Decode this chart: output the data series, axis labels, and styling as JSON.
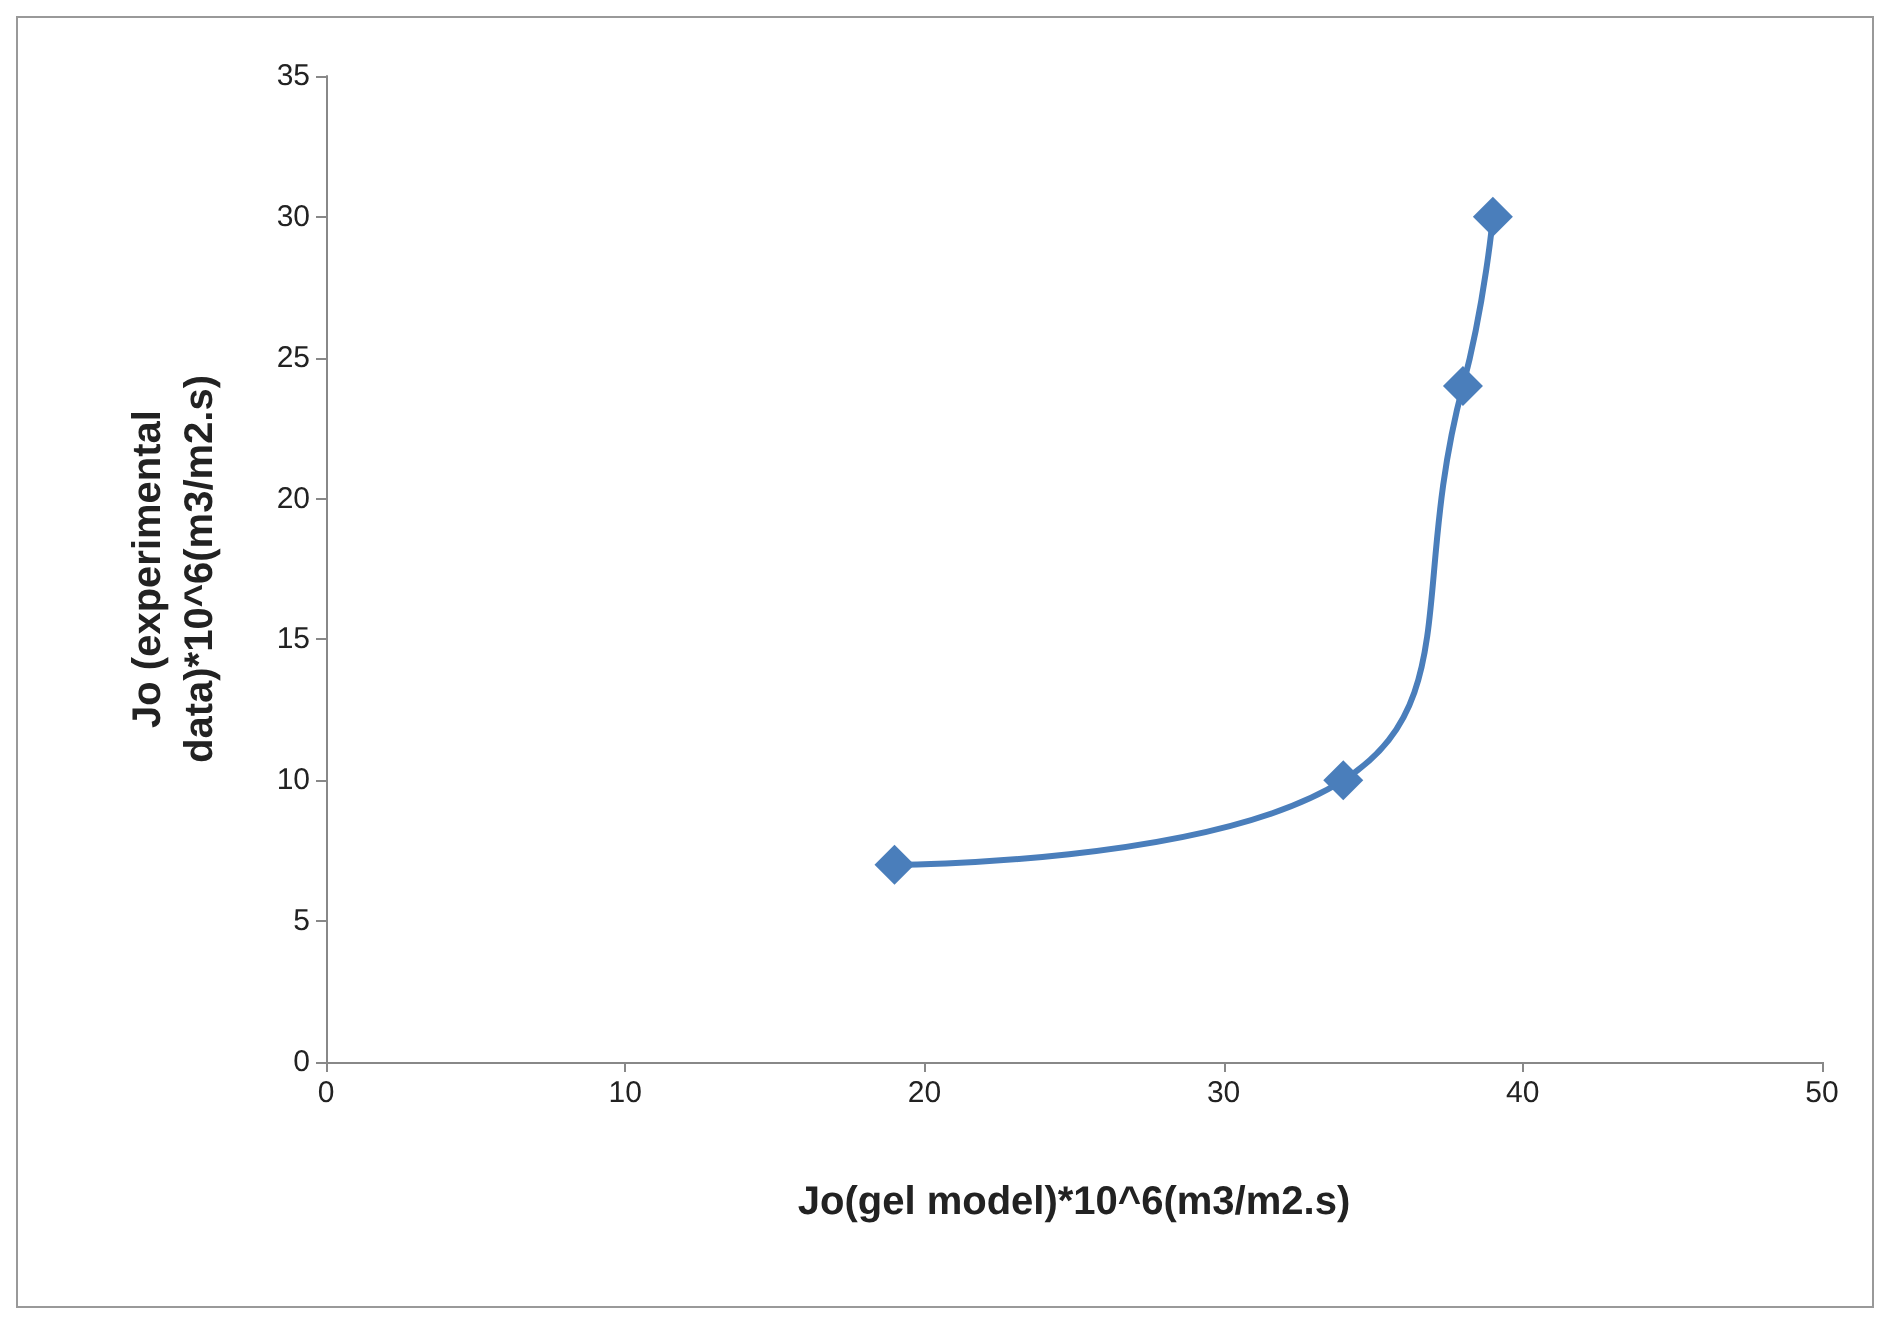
{
  "chart_data": {
    "type": "line",
    "xlabel": "Jo(gel model)*10^6(m3/m2.s)",
    "ylabel": "Jo (experimental data)*10^6(m3/m2.s)",
    "x": [
      19,
      34,
      38,
      39
    ],
    "series": [
      {
        "color": "#4a7ebb",
        "values": [
          7,
          10,
          24,
          30
        ]
      }
    ],
    "xlim": [
      0,
      50
    ],
    "xticks": [
      0,
      10,
      20,
      30,
      40,
      50
    ],
    "ylim": [
      0,
      35
    ],
    "yticks": [
      0,
      5,
      10,
      15,
      20,
      25,
      30,
      35
    ],
    "grid": false,
    "marker": "diamond",
    "line_style": "solid"
  }
}
